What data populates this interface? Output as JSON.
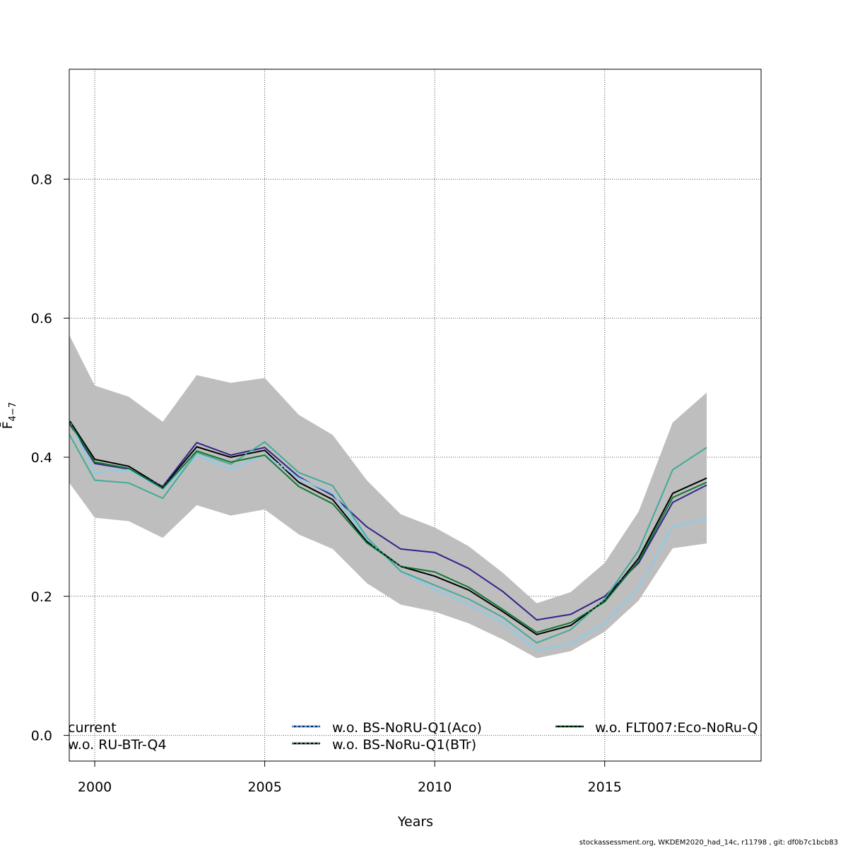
{
  "chart_data": {
    "type": "line",
    "xlabel": "Years",
    "ylabel": "F̄",
    "ylabel_subscript": "4−7",
    "xlim": [
      1999.25,
      2019.6
    ],
    "ylim": [
      -0.037,
      0.958
    ],
    "xticks": [
      2000,
      2005,
      2010,
      2015
    ],
    "xtick_labels": [
      "2000",
      "2005",
      "2010",
      "2015"
    ],
    "yticks": [
      0.0,
      0.2,
      0.4,
      0.6,
      0.8
    ],
    "ytick_labels": [
      "0.0",
      "0.2",
      "0.4",
      "0.6",
      "0.8"
    ],
    "grid": true,
    "x": [
      1999,
      2000,
      2001,
      2002,
      2003,
      2004,
      2005,
      2006,
      2007,
      2008,
      2009,
      2010,
      2011,
      2012,
      2013,
      2014,
      2015,
      2016,
      2017,
      2018
    ],
    "band": {
      "color": "#bebebe",
      "lower": [
        0.38,
        0.313,
        0.308,
        0.284,
        0.331,
        0.316,
        0.325,
        0.289,
        0.268,
        0.219,
        0.188,
        0.178,
        0.161,
        0.138,
        0.111,
        0.121,
        0.149,
        0.194,
        0.269,
        0.276
      ],
      "upper": [
        0.6,
        0.503,
        0.487,
        0.451,
        0.518,
        0.507,
        0.514,
        0.461,
        0.432,
        0.367,
        0.318,
        0.299,
        0.272,
        0.234,
        0.19,
        0.206,
        0.248,
        0.322,
        0.45,
        0.493
      ]
    },
    "series": [
      {
        "name": "current",
        "color": "#000000",
        "dash": "",
        "width": 2,
        "values": [
          0.472,
          0.397,
          0.387,
          0.357,
          0.415,
          0.4,
          0.41,
          0.364,
          0.339,
          0.279,
          0.243,
          0.229,
          0.209,
          0.178,
          0.145,
          0.158,
          0.194,
          0.255,
          0.348,
          0.37
        ]
      },
      {
        "name": "w.o. RU-BTr-Q4",
        "color": "#332288",
        "dash": "",
        "width": 2,
        "values": [
          0.468,
          0.391,
          0.383,
          0.358,
          0.421,
          0.403,
          0.414,
          0.372,
          0.345,
          0.3,
          0.268,
          0.263,
          0.24,
          0.207,
          0.166,
          0.174,
          0.2,
          0.248,
          0.335,
          0.36
        ]
      },
      {
        "name": "w.o. BS-NoRU-Q1(Aco)",
        "color": "#88ccee",
        "dash": "",
        "width": 2,
        "values": [
          0.478,
          0.378,
          0.382,
          0.354,
          0.402,
          0.383,
          0.404,
          0.37,
          0.348,
          0.283,
          0.236,
          0.21,
          0.188,
          0.162,
          0.123,
          0.132,
          0.161,
          0.213,
          0.3,
          0.312
        ]
      },
      {
        "name": "w.o. BS-NoRu-Q1(BTr)",
        "color": "#44aa99",
        "dash": "",
        "width": 2,
        "values": [
          0.455,
          0.367,
          0.363,
          0.341,
          0.407,
          0.39,
          0.422,
          0.378,
          0.359,
          0.285,
          0.236,
          0.216,
          0.196,
          0.17,
          0.133,
          0.152,
          0.196,
          0.266,
          0.382,
          0.414
        ]
      },
      {
        "name": "w.o. FLT007:Eco-NoRu-Q",
        "color": "#117733",
        "dash": "",
        "width": 2,
        "values": [
          0.47,
          0.393,
          0.384,
          0.355,
          0.409,
          0.393,
          0.403,
          0.358,
          0.333,
          0.277,
          0.243,
          0.235,
          0.213,
          0.181,
          0.148,
          0.162,
          0.192,
          0.251,
          0.342,
          0.364
        ]
      },
      {
        "name": "current (overlay)",
        "color": "#000000",
        "dash": "3 3",
        "width": 1.5,
        "overlay": true,
        "values": [
          0.472,
          0.397,
          0.387,
          0.357,
          0.415,
          0.4,
          0.41,
          0.364,
          0.339,
          0.279,
          0.243,
          0.229,
          0.209,
          0.178,
          0.145,
          0.158,
          0.194,
          0.255,
          0.348,
          0.37
        ]
      }
    ],
    "legend": {
      "placement": "bottom",
      "entries": [
        {
          "label": "current",
          "color": "#000000",
          "dash": "",
          "col": 0,
          "row": 0,
          "swatch": false
        },
        {
          "label": "w.o. RU-BTr-Q4",
          "color": "#332288",
          "dash": "",
          "col": 0,
          "row": 1,
          "swatch": false
        },
        {
          "label": "w.o. BS-NoRU-Q1(Aco)",
          "color": "#88ccee",
          "dash": "3 3",
          "col": 1,
          "row": 0,
          "swatch": true,
          "under": "#0b2b6b"
        },
        {
          "label": "w.o. BS-NoRu-Q1(BTr)",
          "color": "#44aa99",
          "dash": "3 3",
          "col": 1,
          "row": 1,
          "swatch": true,
          "under": "#000000"
        },
        {
          "label": "w.o. FLT007:Eco-NoRu-Q",
          "color": "#117733",
          "dash": "3 3",
          "col": 2,
          "row": 0,
          "swatch": true,
          "under": "#000000"
        }
      ]
    }
  },
  "footer": {
    "note": "stockassessment.org, WKDEM2020_had_14c, r11798 , git: df0b7c1bcb83"
  }
}
